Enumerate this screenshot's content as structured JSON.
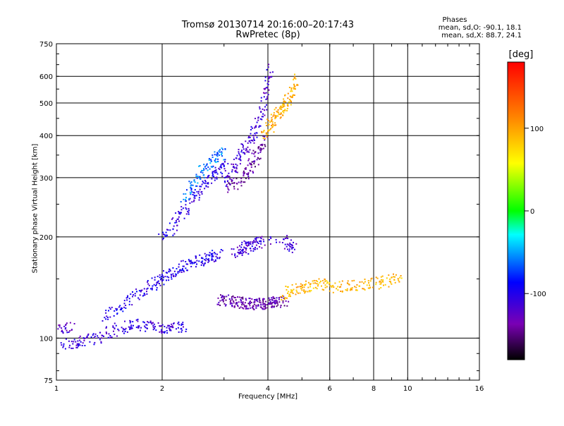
{
  "chart_data": {
    "type": "scatter",
    "title": "Tromsø 20130714 20:16:00–20:17:43",
    "subtitle": "RwPretec (8p)",
    "xlabel": "Frequency [MHz]",
    "ylabel": "Stationary phase Virtual Height [km]",
    "x_scale": "log",
    "y_scale": "log",
    "xlim": [
      1,
      16
    ],
    "ylim": [
      75,
      750
    ],
    "x_ticks": [
      "1",
      "2",
      "4",
      "6",
      "8",
      "10",
      "16"
    ],
    "x_tick_values": [
      1,
      2,
      4,
      6,
      8,
      10,
      16
    ],
    "y_ticks": [
      "75",
      "100",
      "200",
      "300",
      "400",
      "500",
      "600",
      "750"
    ],
    "y_tick_values": [
      75,
      100,
      200,
      300,
      400,
      500,
      600,
      750
    ],
    "grid": true,
    "colorbar": {
      "label": "[deg]",
      "range": [
        -180,
        180
      ],
      "ticks": [
        "100",
        "0",
        "-100"
      ],
      "tick_values": [
        100,
        0,
        -100
      ]
    },
    "stats": {
      "heading": "Phases",
      "line_o": "mean, sd,O: -90.1, 18.1",
      "line_x": "mean, sd,X:  88.7, 24.1"
    },
    "traces": [
      {
        "x": [
          1.0,
          1.12,
          1.16,
          1.2,
          1.3,
          1.4,
          1.5,
          1.6,
          1.7,
          1.8,
          1.9,
          2.0,
          2.1,
          2.2,
          2.3
        ],
        "y": [
          96,
          97,
          98,
          99,
          101,
          104,
          107,
          110,
          110,
          109,
          108,
          107,
          107,
          108,
          108
        ],
        "phase": -110
      },
      {
        "x": [
          1.0,
          1.05,
          1.1
        ],
        "y": [
          108,
          108,
          108
        ],
        "phase": -120
      },
      {
        "x": [
          1.35,
          1.45,
          1.55,
          1.65,
          1.75,
          1.85,
          1.95,
          2.0,
          2.1,
          2.2,
          2.3,
          2.4,
          2.5,
          2.6,
          2.7,
          2.8,
          2.9
        ],
        "y": [
          115,
          120,
          126,
          132,
          138,
          143,
          148,
          152,
          156,
          160,
          164,
          168,
          170,
          172,
          174,
          176,
          178
        ],
        "phase": -100
      },
      {
        "x": [
          2.0,
          2.1,
          2.2,
          2.3,
          2.4,
          2.5,
          2.6,
          2.7,
          2.8,
          2.9,
          3.0
        ],
        "y": [
          200,
          210,
          225,
          240,
          255,
          270,
          285,
          300,
          310,
          320,
          330
        ],
        "phase": -105
      },
      {
        "x": [
          2.3,
          2.4,
          2.5,
          2.6,
          2.7,
          2.8,
          2.9,
          3.0
        ],
        "y": [
          260,
          280,
          300,
          320,
          330,
          340,
          350,
          360
        ],
        "phase": -60
      },
      {
        "x": [
          3.0,
          3.1,
          3.2,
          3.3,
          3.4,
          3.5,
          3.6,
          3.7,
          3.8,
          3.9,
          4.0,
          4.05
        ],
        "y": [
          290,
          305,
          320,
          340,
          360,
          380,
          400,
          430,
          470,
          520,
          580,
          640
        ],
        "phase": -115
      },
      {
        "x": [
          3.1,
          3.2,
          3.4,
          3.5,
          3.6,
          3.7,
          3.8,
          3.9
        ],
        "y": [
          280,
          290,
          300,
          320,
          330,
          350,
          370,
          390
        ],
        "phase": -140
      },
      {
        "x": [
          3.9,
          4.0,
          4.1,
          4.2,
          4.3,
          4.4,
          4.5,
          4.6,
          4.7,
          4.8
        ],
        "y": [
          400,
          420,
          440,
          460,
          470,
          480,
          500,
          520,
          550,
          600
        ],
        "phase": 95
      },
      {
        "x": [
          2.9,
          3.0,
          3.1,
          3.2,
          3.3,
          3.4,
          3.5,
          3.6,
          3.7,
          3.8,
          3.9,
          4.0,
          4.1,
          4.2,
          4.3,
          4.5
        ],
        "y": [
          130,
          130,
          129,
          129,
          128,
          128,
          127,
          127,
          127,
          127,
          127,
          128,
          128,
          129,
          129,
          130
        ],
        "phase": -135
      },
      {
        "x": [
          4.4,
          4.6,
          4.8,
          5.0,
          5.2,
          5.5,
          5.8,
          6.2,
          6.6,
          7.0,
          7.5,
          8.0,
          8.5,
          9.0,
          9.5
        ],
        "y": [
          135,
          138,
          140,
          142,
          143,
          145,
          145,
          142,
          143,
          144,
          145,
          146,
          148,
          150,
          152
        ],
        "phase": 90
      },
      {
        "x": [
          3.2,
          3.3,
          3.4,
          3.5,
          3.6,
          3.7,
          3.8,
          4.5,
          4.6,
          4.7
        ],
        "y": [
          180,
          182,
          185,
          188,
          190,
          192,
          194,
          195,
          190,
          185
        ],
        "phase": -115
      }
    ]
  }
}
